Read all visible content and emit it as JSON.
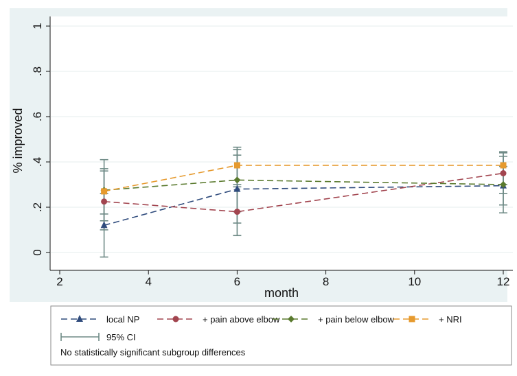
{
  "chart_data": {
    "type": "line",
    "xlabel": "month",
    "ylabel": "% improved",
    "xlim": [
      2,
      12
    ],
    "ylim": [
      0,
      1
    ],
    "x_ticks": [
      2,
      4,
      6,
      8,
      10,
      12
    ],
    "x_tick_labels": [
      "2",
      "4",
      "6",
      "8",
      "10",
      "12"
    ],
    "y_ticks": [
      0,
      0.2,
      0.4,
      0.6,
      0.8,
      1
    ],
    "y_tick_labels": [
      "0",
      ".2",
      ".4",
      ".6",
      ".8",
      "1"
    ],
    "grid": "horizontal",
    "legend_position": "bottom",
    "x": [
      3,
      6,
      12
    ],
    "series": [
      {
        "name": "local NP",
        "color": "#2f4b7c",
        "marker": "triangle",
        "values": [
          0.12,
          0.28,
          0.295
        ],
        "ci_low": [
          -0.02,
          0.13,
          0.21
        ],
        "ci_high": [
          0.26,
          0.43,
          0.38
        ]
      },
      {
        "name": "+ pain above elbow",
        "color": "#a2454f",
        "marker": "circle",
        "values": [
          0.225,
          0.18,
          0.35
        ],
        "ci_low": [
          0.1,
          0.075,
          0.26
        ],
        "ci_high": [
          0.36,
          0.29,
          0.44
        ]
      },
      {
        "name": "+ pain below elbow",
        "color": "#5a7a2e",
        "marker": "diamond",
        "values": [
          0.275,
          0.32,
          0.3
        ],
        "ci_low": [
          0.14,
          0.18,
          0.175
        ],
        "ci_high": [
          0.41,
          0.455,
          0.425
        ]
      },
      {
        "name": "+ NRI",
        "color": "#e69a2e",
        "marker": "square",
        "values": [
          0.27,
          0.385,
          0.385
        ],
        "ci_low": [
          0.17,
          0.3,
          0.3
        ],
        "ci_high": [
          0.37,
          0.465,
          0.445
        ]
      }
    ],
    "ci_legend_label": "95% CI",
    "ci_color": "#6e8a86",
    "note": "No statistically significant subgroup differences"
  }
}
